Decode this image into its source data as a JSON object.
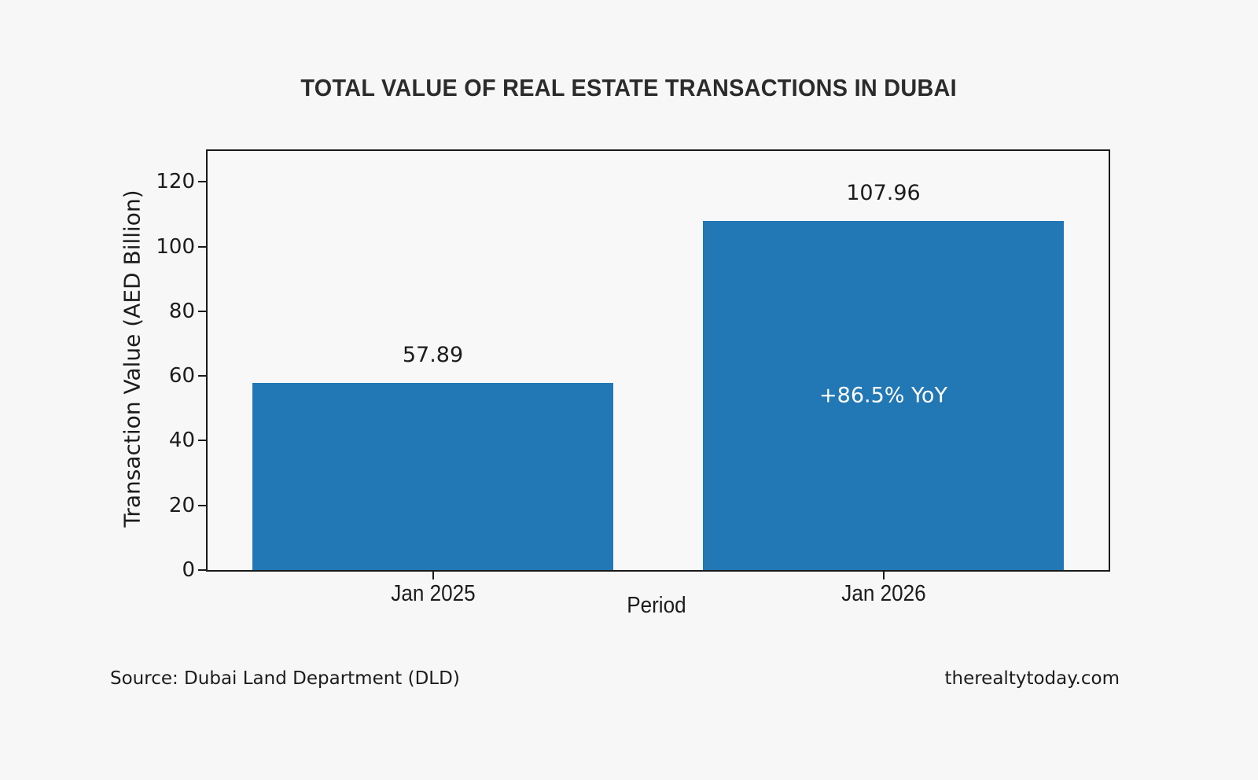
{
  "figure": {
    "background": "#f7f7f7",
    "title": "TOTAL VALUE OF REAL ESTATE TRANSACTIONS IN DUBAI",
    "footer": {
      "source": "Source: Dubai Land Department (DLD)",
      "website": "therealtytoday.com"
    }
  },
  "chart_data": {
    "type": "bar",
    "title": "TOTAL VALUE OF REAL ESTATE TRANSACTIONS IN DUBAI",
    "xlabel": "Period",
    "ylabel": "Transaction Value (AED Billion)",
    "categories": [
      "Jan 2025",
      "Jan 2026"
    ],
    "values": [
      57.89,
      107.96
    ],
    "bar_labels": [
      "57.89",
      "107.96"
    ],
    "annotations": [
      {
        "bar_index": 1,
        "text": "+86.5% YoY",
        "color": "#ffffff"
      }
    ],
    "ylim": [
      0,
      129.55
    ],
    "yticks": [
      0,
      20,
      40,
      60,
      80,
      100,
      120
    ],
    "bar_color": "#2277b5",
    "bar_width_fraction": 0.8,
    "grid": false,
    "legend": null,
    "axis_color": "#1a1a1a",
    "plot_background": "#f8f8f8"
  }
}
